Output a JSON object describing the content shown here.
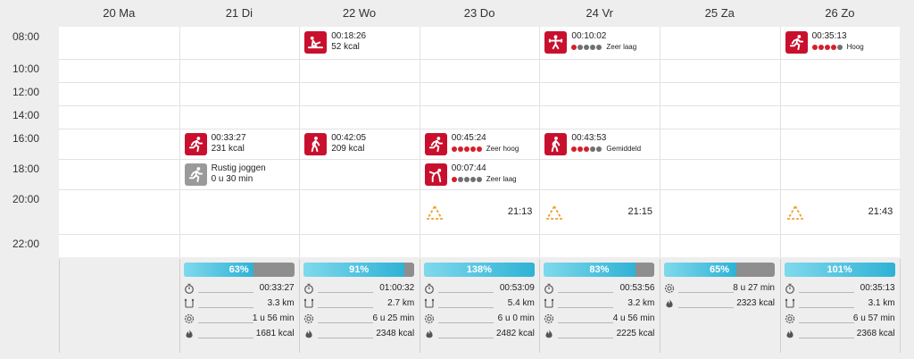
{
  "days": [
    "20 Ma",
    "21 Di",
    "22 Wo",
    "23 Do",
    "24 Vr",
    "25 Za",
    "26 Zo"
  ],
  "times": [
    "08:00",
    "10:00",
    "12:00",
    "14:00",
    "16:00",
    "18:00",
    "20:00",
    "22:00"
  ],
  "activities": [
    {
      "day": 1,
      "slot": 4,
      "icon": "running-icon",
      "grey": false,
      "line1": "00:33:27",
      "line2": "231 kcal"
    },
    {
      "day": 1,
      "slot": 5,
      "icon": "running-icon",
      "grey": true,
      "line1": "Rustig joggen",
      "line2": "0 u 30 min"
    },
    {
      "day": 2,
      "slot": 0,
      "icon": "rowing-icon",
      "grey": false,
      "line1": "00:18:26",
      "line2": "52 kcal"
    },
    {
      "day": 2,
      "slot": 4,
      "icon": "walking-icon",
      "grey": false,
      "line1": "00:42:05",
      "line2": "209 kcal"
    },
    {
      "day": 3,
      "slot": 4,
      "icon": "running-icon",
      "grey": false,
      "line1": "00:45:24",
      "dots": 5,
      "level": "Zeer hoog"
    },
    {
      "day": 3,
      "slot": 5,
      "icon": "stretching-icon",
      "grey": false,
      "line1": "00:07:44",
      "dots": 1,
      "level": "Zeer laag"
    },
    {
      "day": 4,
      "slot": 0,
      "icon": "strength-training-icon",
      "grey": false,
      "line1": "00:10:02",
      "dots": 1,
      "level": "Zeer laag"
    },
    {
      "day": 4,
      "slot": 4,
      "icon": "walking-icon",
      "grey": false,
      "line1": "00:43:53",
      "dots": 3,
      "level": "Gemiddeld"
    },
    {
      "day": 6,
      "slot": 0,
      "icon": "running-icon",
      "grey": false,
      "line1": "00:35:13",
      "dots": 4,
      "level": "Hoog"
    }
  ],
  "sleep": [
    {
      "day": 3,
      "time": "21:13"
    },
    {
      "day": 4,
      "time": "21:15"
    },
    {
      "day": 6,
      "time": "21:43"
    }
  ],
  "summaries": [
    {
      "day": 1,
      "percent": "63%",
      "fill": 0.63,
      "stats": [
        {
          "icon": "stopwatch-icon",
          "value": "00:33:27"
        },
        {
          "icon": "distance-icon",
          "value": "3.3 km"
        },
        {
          "icon": "activity-time-icon",
          "value": "1 u 56 min"
        },
        {
          "icon": "flame-icon",
          "value": "1681 kcal"
        }
      ]
    },
    {
      "day": 2,
      "percent": "91%",
      "fill": 0.91,
      "stats": [
        {
          "icon": "stopwatch-icon",
          "value": "01:00:32"
        },
        {
          "icon": "distance-icon",
          "value": "2.7 km"
        },
        {
          "icon": "activity-time-icon",
          "value": "6 u 25 min"
        },
        {
          "icon": "flame-icon",
          "value": "2348 kcal"
        }
      ]
    },
    {
      "day": 3,
      "percent": "138%",
      "fill": 1.0,
      "stats": [
        {
          "icon": "stopwatch-icon",
          "value": "00:53:09"
        },
        {
          "icon": "distance-icon",
          "value": "5.4 km"
        },
        {
          "icon": "activity-time-icon",
          "value": "6 u 0 min"
        },
        {
          "icon": "flame-icon",
          "value": "2482 kcal"
        }
      ]
    },
    {
      "day": 4,
      "percent": "83%",
      "fill": 0.83,
      "stats": [
        {
          "icon": "stopwatch-icon",
          "value": "00:53:56"
        },
        {
          "icon": "distance-icon",
          "value": "3.2 km"
        },
        {
          "icon": "activity-time-icon",
          "value": "4 u 56 min"
        },
        {
          "icon": "flame-icon",
          "value": "2225 kcal"
        }
      ]
    },
    {
      "day": 5,
      "percent": "65%",
      "fill": 0.65,
      "stats": [
        {
          "icon": "activity-time-icon",
          "value": "8 u 27 min"
        },
        {
          "icon": "flame-icon",
          "value": "2323 kcal"
        }
      ]
    },
    {
      "day": 6,
      "percent": "101%",
      "fill": 1.0,
      "stats": [
        {
          "icon": "stopwatch-icon",
          "value": "00:35:13"
        },
        {
          "icon": "distance-icon",
          "value": "3.1 km"
        },
        {
          "icon": "activity-time-icon",
          "value": "6 u 57 min"
        },
        {
          "icon": "flame-icon",
          "value": "2368 kcal"
        }
      ]
    }
  ],
  "colors": {
    "activity": "#c8102e",
    "planned": "#9a9a9a",
    "dot_on": "#d4202c",
    "dot_off": "#707070",
    "sleep": "#f0a030",
    "bar_fill": "#2fb2d6",
    "bar_rest": "#8e8e8e"
  }
}
